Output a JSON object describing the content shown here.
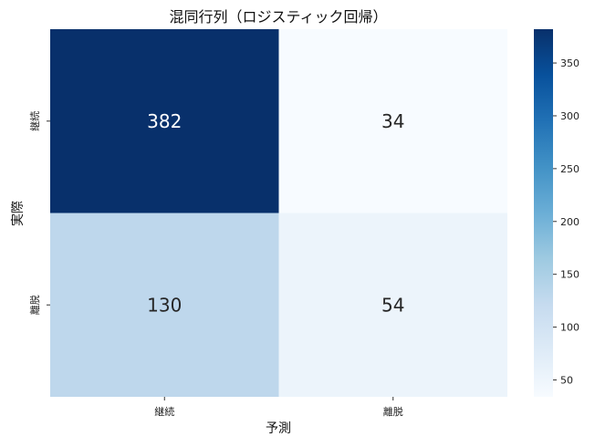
{
  "chart_data": {
    "type": "heatmap",
    "title": "混同行列（ロジスティック回帰）",
    "xlabel": "予測",
    "ylabel": "実際",
    "x_categories": [
      "継続",
      "離脱"
    ],
    "y_categories": [
      "継続",
      "離脱"
    ],
    "values": [
      [
        382,
        34
      ],
      [
        130,
        54
      ]
    ],
    "colormap": "Blues",
    "color_range": [
      34,
      382
    ],
    "colorbar_ticks": [
      50,
      100,
      150,
      200,
      250,
      300,
      350
    ]
  }
}
